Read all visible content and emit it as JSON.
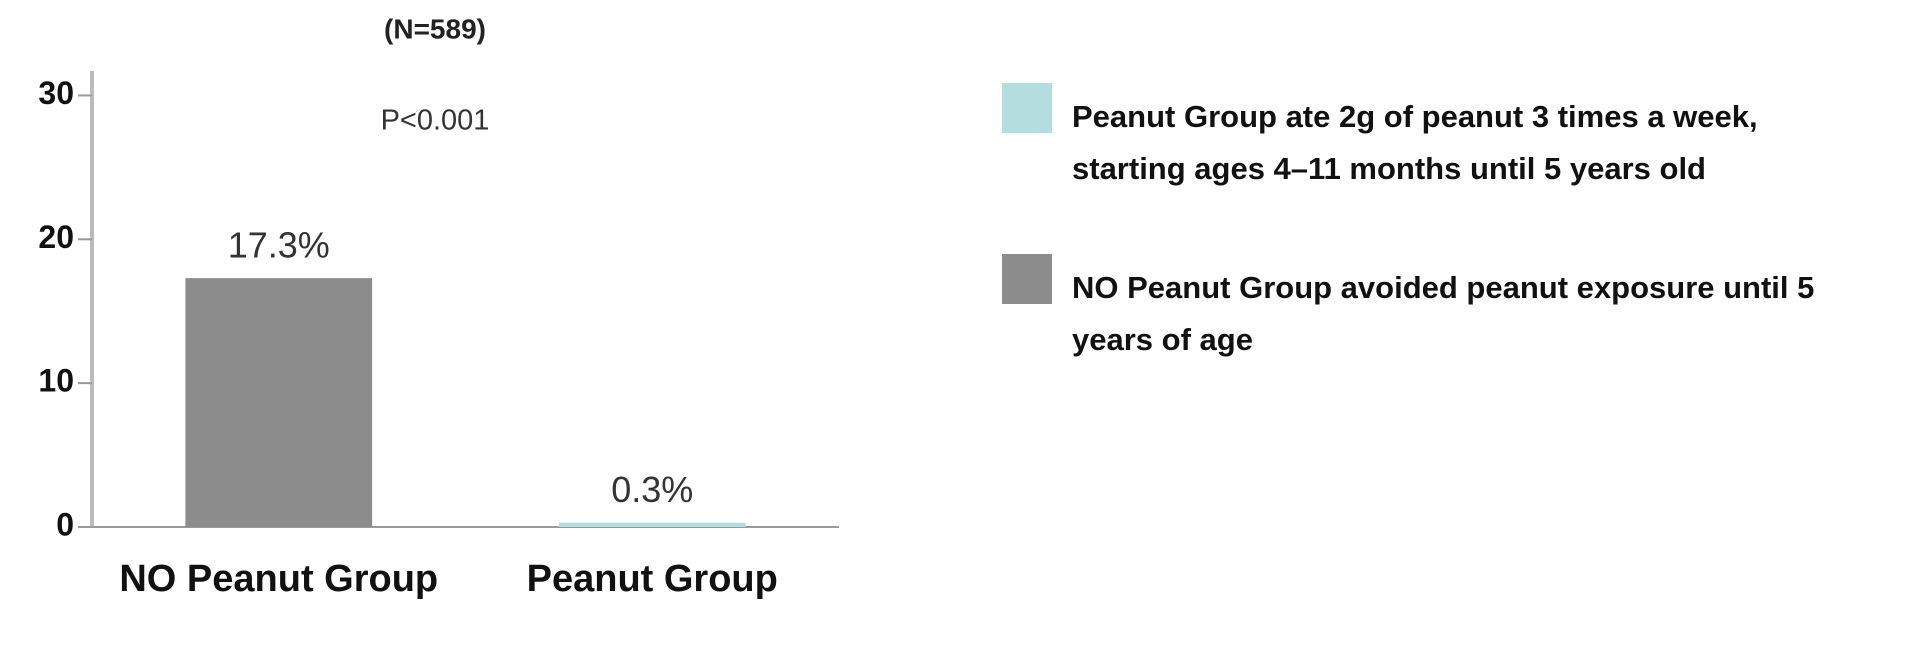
{
  "chart_data": {
    "type": "bar",
    "title": "(N=589)",
    "annotation": "P<0.001",
    "categories": [
      "NO Peanut Group",
      "Peanut Group"
    ],
    "values": [
      17.3,
      0.3
    ],
    "value_labels": [
      "17.3%",
      "0.3%"
    ],
    "colors": [
      "#8c8c8c",
      "#b4dde0"
    ],
    "ylim": [
      0,
      31.7
    ],
    "yticks": [
      0,
      10,
      20,
      30
    ],
    "grid": false,
    "legend": [
      {
        "label": "Peanut Group ate 2g of peanut 3 times a week, starting ages 4–11 months until 5 years old",
        "color": "#b4dde0"
      },
      {
        "label": "NO Peanut Group avoided peanut exposure until 5 years of age",
        "color": "#8c8c8c"
      }
    ]
  }
}
